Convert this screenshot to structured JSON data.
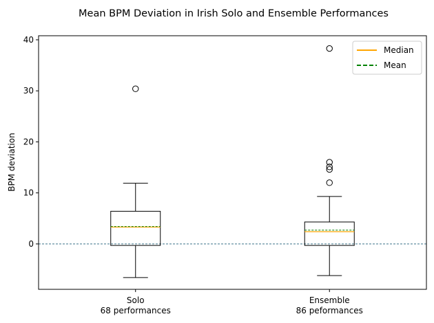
{
  "chart_data": {
    "type": "box",
    "title": "Mean BPM Deviation in Irish Solo and Ensemble Performances",
    "xlabel": "",
    "ylabel": "BPM deviation",
    "ylim": [
      -8.9,
      40.8
    ],
    "yticks": [
      0,
      10,
      20,
      30,
      40
    ],
    "reference_line": {
      "y": 0,
      "style": "dashed",
      "color": "#1f5f7a"
    },
    "categories": [
      {
        "name": "Solo",
        "sublabel": "68 performances"
      },
      {
        "name": "Ensemble",
        "sublabel": "86 peformances"
      }
    ],
    "boxes": [
      {
        "whisker_low": -6.6,
        "q1": -0.3,
        "median": 3.3,
        "mean": 3.4,
        "q3": 6.4,
        "whisker_high": 11.9,
        "outliers": [
          30.4
        ]
      },
      {
        "whisker_low": -6.2,
        "q1": -0.3,
        "median": 2.4,
        "mean": 2.7,
        "q3": 4.3,
        "whisker_high": 9.3,
        "outliers": [
          38.3,
          16.0,
          15.1,
          14.6,
          12.0
        ]
      }
    ],
    "legend": {
      "position": "top-right",
      "entries": [
        {
          "label": "Median",
          "color": "#ffa500",
          "style": "solid"
        },
        {
          "label": "Mean",
          "color": "#008000",
          "style": "dashed"
        }
      ]
    },
    "grid": false
  }
}
